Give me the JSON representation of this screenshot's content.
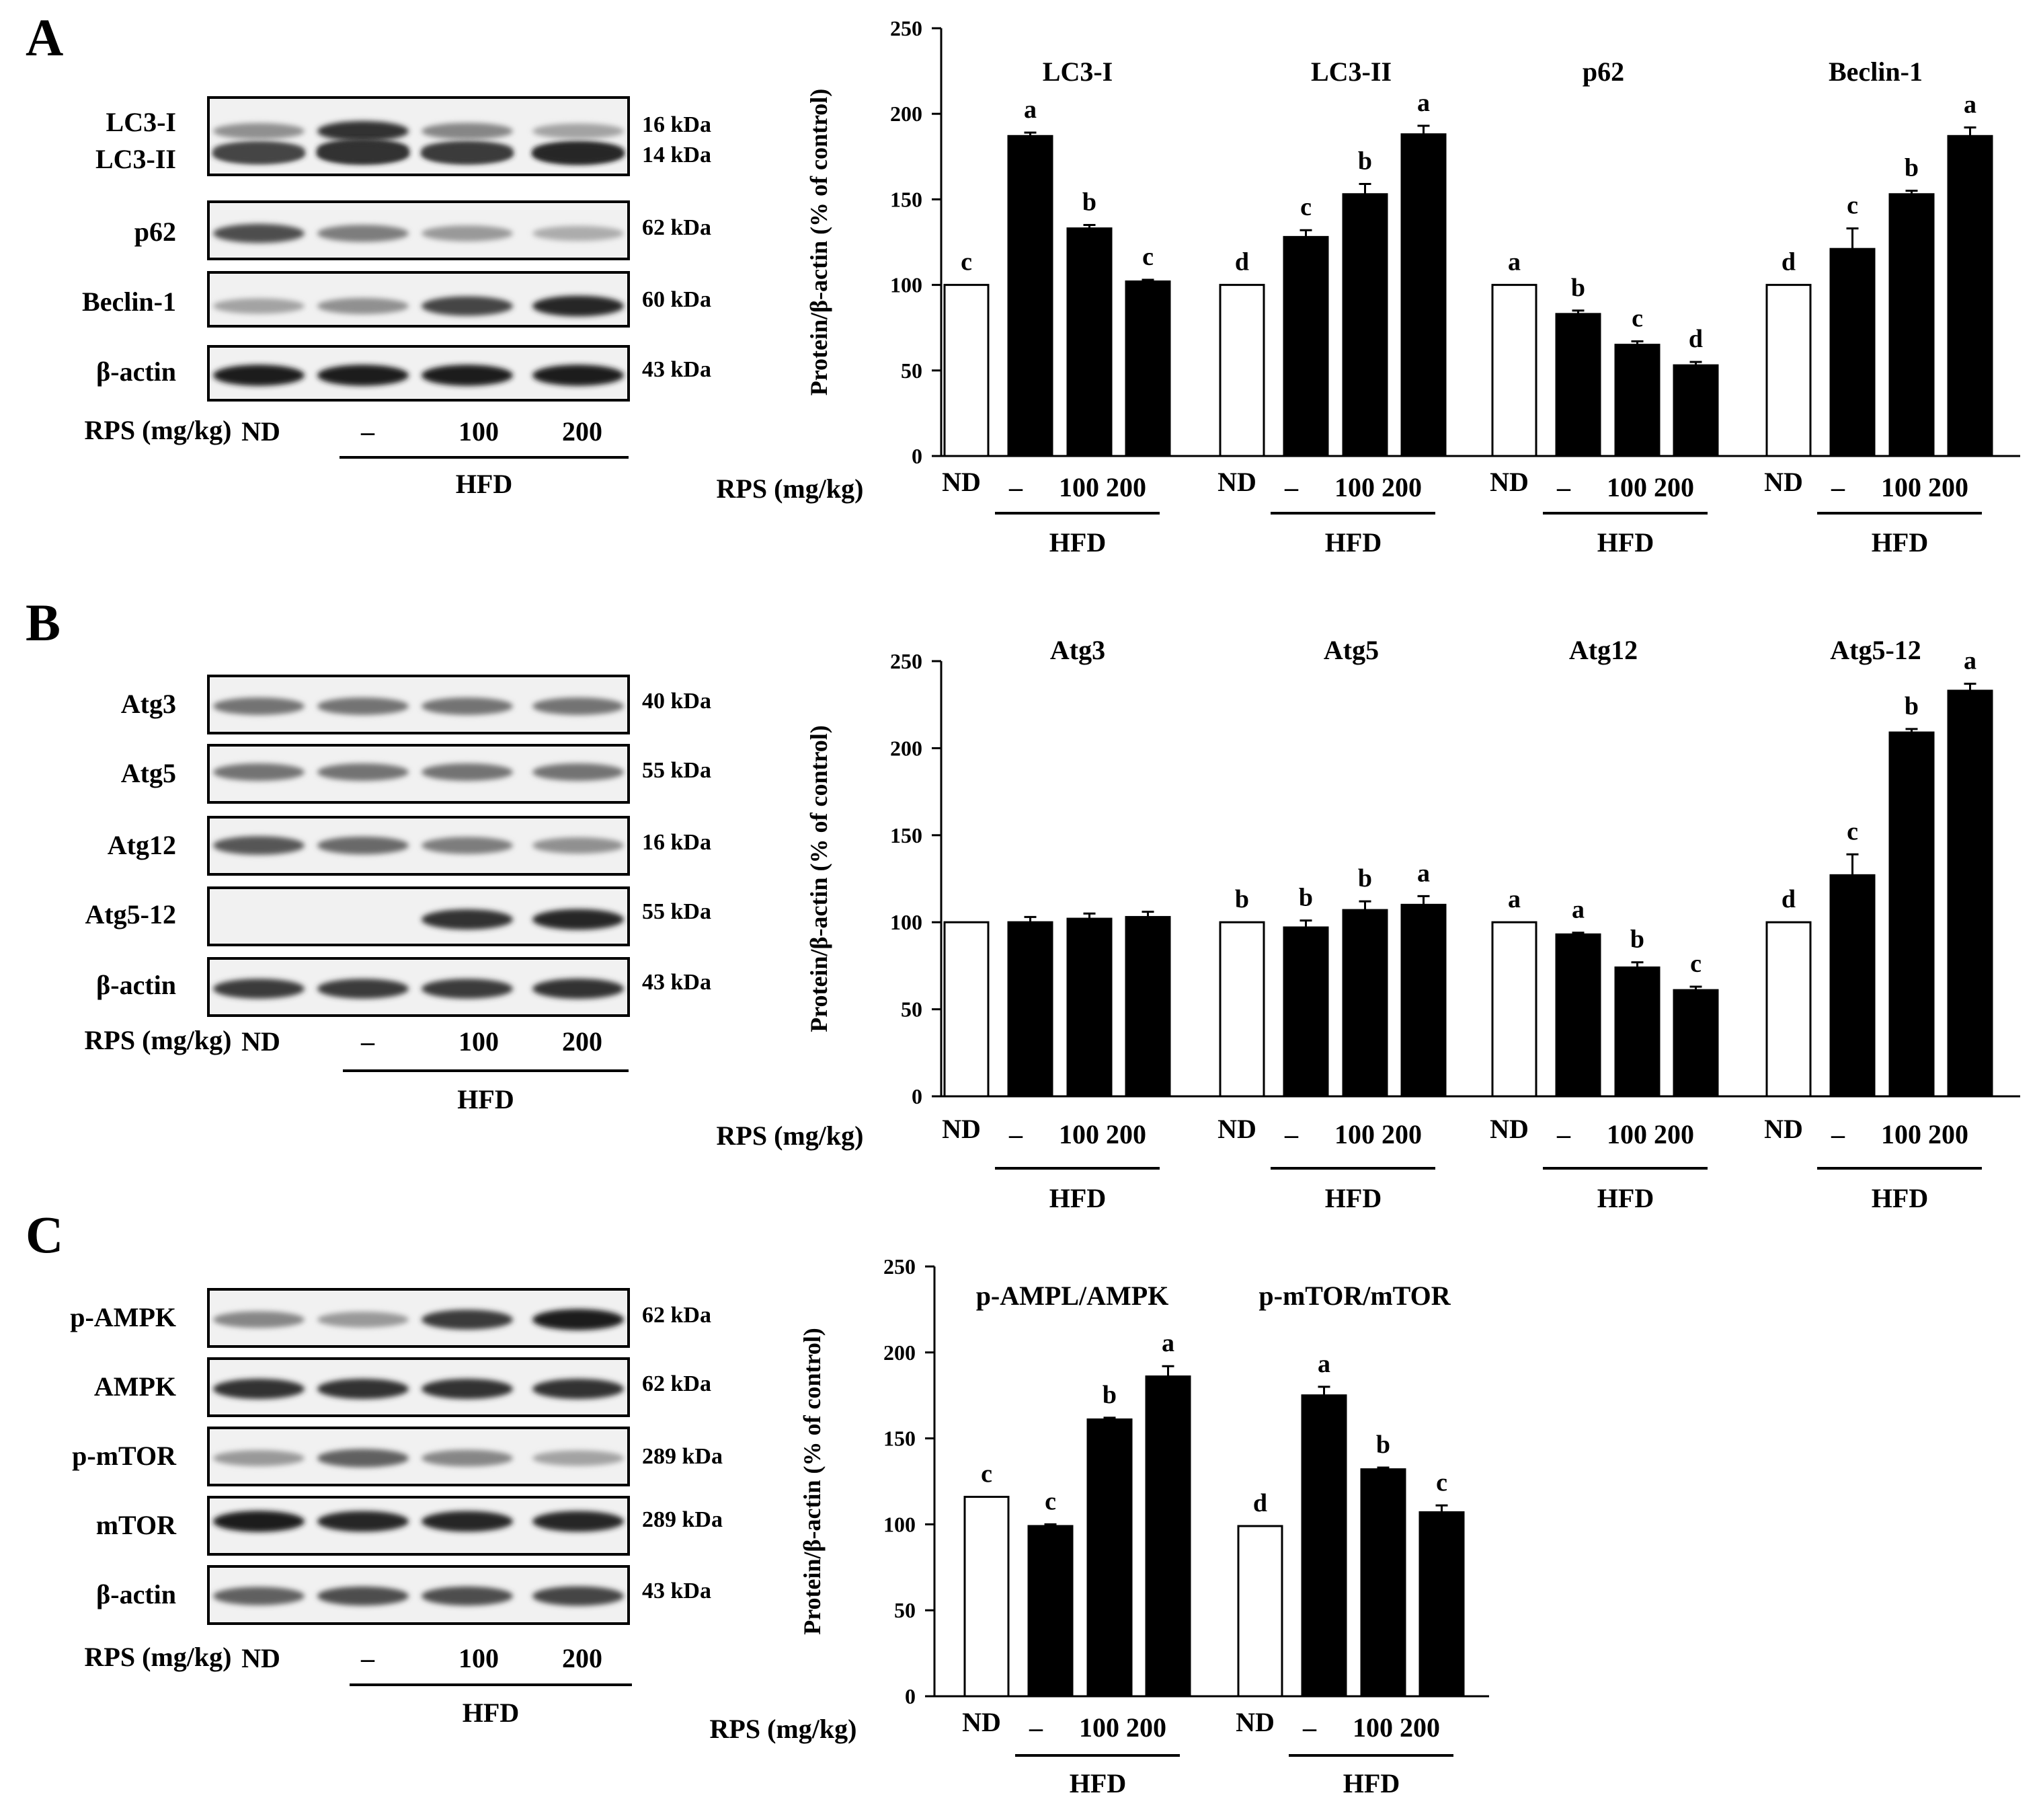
{
  "panels": [
    {
      "letter": "A",
      "blot": {
        "rows": [
          {
            "label": "LC3-I",
            "kda": "16 kDa"
          },
          {
            "label": "LC3-II",
            "kda": "14 kDa"
          },
          {
            "label": "p62",
            "kda": "62 kDa"
          },
          {
            "label": "Beclin-1",
            "kda": "60 kDa"
          },
          {
            "label": "β-actin",
            "kda": "43 kDa"
          }
        ],
        "rps_label": "RPS (mg/kg)",
        "lanes": [
          "ND",
          "–",
          "100",
          "200"
        ],
        "hfd_label": "HFD"
      }
    },
    {
      "letter": "B",
      "blot": {
        "rows": [
          {
            "label": "Atg3",
            "kda": "40 kDa"
          },
          {
            "label": "Atg5",
            "kda": "55 kDa"
          },
          {
            "label": "Atg12",
            "kda": "16 kDa"
          },
          {
            "label": "Atg5-12",
            "kda": "55 kDa"
          },
          {
            "label": "β-actin",
            "kda": "43 kDa"
          }
        ],
        "rps_label": "RPS (mg/kg)",
        "lanes": [
          "ND",
          "–",
          "100",
          "200"
        ],
        "hfd_label": "HFD"
      }
    },
    {
      "letter": "C",
      "blot": {
        "rows": [
          {
            "label": "p-AMPK",
            "kda": "62 kDa"
          },
          {
            "label": "AMPK",
            "kda": "62 kDa"
          },
          {
            "label": "p-mTOR",
            "kda": "289 kDa"
          },
          {
            "label": "mTOR",
            "kda": "289 kDa"
          },
          {
            "label": "β-actin",
            "kda": "43 kDa"
          }
        ],
        "rps_label": "RPS (mg/kg)",
        "lanes": [
          "ND",
          "–",
          "100",
          "200"
        ],
        "hfd_label": "HFD"
      }
    }
  ],
  "chart_data": [
    {
      "panel": "A",
      "type": "bar",
      "ylabel": "Protein/β-actin (% of control)",
      "ylim": [
        0,
        250
      ],
      "yticks": [
        0,
        50,
        100,
        150,
        200,
        250
      ],
      "xlabel_prefix": "RPS (mg/kg)",
      "categories": [
        "ND",
        "–",
        "100",
        "200"
      ],
      "group_label": "HFD",
      "groups": [
        {
          "name": "LC3-I",
          "values": [
            100,
            187,
            133,
            102
          ],
          "errors": [
            0,
            2,
            2,
            1
          ],
          "letters": [
            "c",
            "a",
            "b",
            "c"
          ]
        },
        {
          "name": "LC3-II",
          "values": [
            100,
            128,
            153,
            188
          ],
          "errors": [
            0,
            4,
            6,
            5
          ],
          "letters": [
            "d",
            "c",
            "b",
            "a"
          ]
        },
        {
          "name": "p62",
          "values": [
            100,
            83,
            65,
            53
          ],
          "errors": [
            0,
            2,
            2,
            2
          ],
          "letters": [
            "a",
            "b",
            "c",
            "d"
          ]
        },
        {
          "name": "Beclin-1",
          "values": [
            100,
            121,
            153,
            187
          ],
          "errors": [
            0,
            12,
            2,
            5
          ],
          "letters": [
            "d",
            "c",
            "b",
            "a"
          ]
        }
      ]
    },
    {
      "panel": "B",
      "type": "bar",
      "ylabel": "Protein/β-actin (% of control)",
      "ylim": [
        0,
        250
      ],
      "yticks": [
        0,
        50,
        100,
        150,
        200,
        250
      ],
      "xlabel_prefix": "RPS (mg/kg)",
      "categories": [
        "ND",
        "–",
        "100",
        "200"
      ],
      "group_label": "HFD",
      "groups": [
        {
          "name": "Atg3",
          "values": [
            100,
            100,
            102,
            103
          ],
          "errors": [
            0,
            3,
            3,
            3
          ],
          "letters": [
            "",
            "",
            "",
            ""
          ]
        },
        {
          "name": "Atg5",
          "values": [
            100,
            97,
            107,
            110
          ],
          "errors": [
            0,
            4,
            5,
            5
          ],
          "letters": [
            "b",
            "b",
            "b",
            "a"
          ]
        },
        {
          "name": "Atg12",
          "values": [
            100,
            93,
            74,
            61
          ],
          "errors": [
            0,
            1,
            3,
            2
          ],
          "letters": [
            "a",
            "a",
            "b",
            "c"
          ]
        },
        {
          "name": "Atg5-12",
          "values": [
            100,
            127,
            209,
            233
          ],
          "errors": [
            0,
            12,
            2,
            4
          ],
          "letters": [
            "d",
            "c",
            "b",
            "a"
          ]
        }
      ]
    },
    {
      "panel": "C",
      "type": "bar",
      "ylabel": "Protein/β-actin (% of control)",
      "ylim": [
        0,
        250
      ],
      "yticks": [
        0,
        50,
        100,
        150,
        200,
        250
      ],
      "xlabel_prefix": "RPS (mg/kg)",
      "categories": [
        "ND",
        "–",
        "100",
        "200"
      ],
      "group_label": "HFD",
      "groups": [
        {
          "name": "p-AMPL/AMPK",
          "values": [
            116,
            99,
            161,
            186
          ],
          "errors": [
            0,
            1,
            1,
            6
          ],
          "letters": [
            "c",
            "c",
            "b",
            "a"
          ]
        },
        {
          "name": "p-mTOR/mTOR",
          "values": [
            99,
            175,
            132,
            107
          ],
          "errors": [
            0,
            5,
            1,
            4
          ],
          "letters": [
            "d",
            "a",
            "b",
            "c"
          ]
        }
      ]
    }
  ]
}
